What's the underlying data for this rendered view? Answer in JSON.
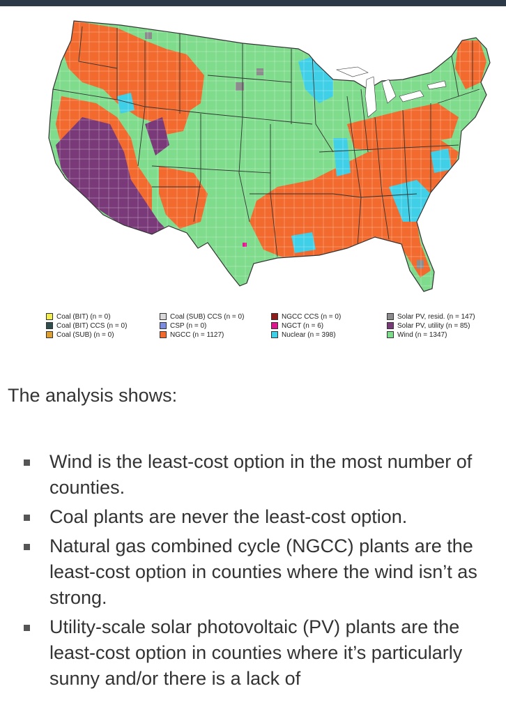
{
  "map": {
    "legend": [
      {
        "label": "Coal (BIT) (n = 0)",
        "color": "#f2ee4e"
      },
      {
        "label": "Coal (SUB) CCS (n = 0)",
        "color": "#d9d9d9"
      },
      {
        "label": "NGCC CCS (n = 0)",
        "color": "#8b1d1d"
      },
      {
        "label": "Solar PV, resid. (n = 147)",
        "color": "#8c8c8c"
      },
      {
        "label": "Coal (BIT) CCS (n = 0)",
        "color": "#2f4f4f"
      },
      {
        "label": "CSP (n = 0)",
        "color": "#7b8de0"
      },
      {
        "label": "NGCT (n = 6)",
        "color": "#e0148c"
      },
      {
        "label": "Solar PV, utility (n = 85)",
        "color": "#7a3a7a"
      },
      {
        "label": "Coal (SUB) (n = 0)",
        "color": "#e0a030"
      },
      {
        "label": "NGCC (n = 1127)",
        "color": "#f26a2e"
      },
      {
        "label": "Nuclear (n = 398)",
        "color": "#3fd0e8"
      },
      {
        "label": "Wind (n = 1347)",
        "color": "#7fdc8c"
      }
    ],
    "colors": {
      "wind": "#7fdc8c",
      "ngcc": "#f26a2e",
      "solar_utility": "#7a3a7a",
      "nuclear": "#3fd0e8",
      "solar_resid": "#8c8c8c",
      "ngct": "#e0148c",
      "border": "#333333"
    }
  },
  "article": {
    "intro": "The analysis shows:",
    "findings": [
      "Wind is the least-cost option in the most number of counties.",
      "Coal plants are never the least-cost option.",
      "Natural gas combined cycle (NGCC) plants are the least-cost option in counties where the wind isn’t as strong.",
      "Utility-scale solar photovoltaic (PV) plants are the least-cost option in counties where it’s particularly sunny and/or there is a lack of"
    ]
  }
}
